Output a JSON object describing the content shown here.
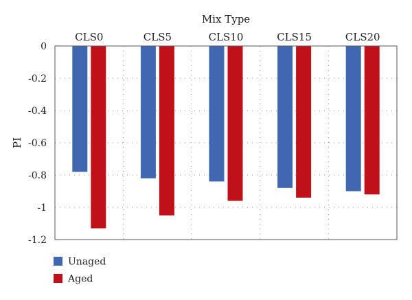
{
  "chart_data": {
    "type": "bar",
    "title": "",
    "xlabel": "Mix Type",
    "ylabel": "PI",
    "categories": [
      "CLS0",
      "CLS5",
      "CLS10",
      "CLS15",
      "CLS20"
    ],
    "series": [
      {
        "name": "Unaged",
        "color": "#3f68b0",
        "values": [
          -0.78,
          -0.82,
          -0.84,
          -0.88,
          -0.9
        ]
      },
      {
        "name": "Aged",
        "color": "#c0101a",
        "values": [
          -1.13,
          -1.05,
          -0.96,
          -0.94,
          -0.92
        ]
      }
    ],
    "ylim": [
      -1.2,
      0
    ],
    "yticks": [
      0,
      -0.2,
      -0.4,
      -0.6,
      -0.8,
      -1,
      -1.2
    ],
    "ytick_labels": [
      "0",
      "-0.2",
      "-0.4",
      "-0.6",
      "-0.8",
      "-1",
      "-1.2"
    ],
    "x_axis_position": "top",
    "grid": "dotted",
    "legend_position": "bottom-left"
  }
}
